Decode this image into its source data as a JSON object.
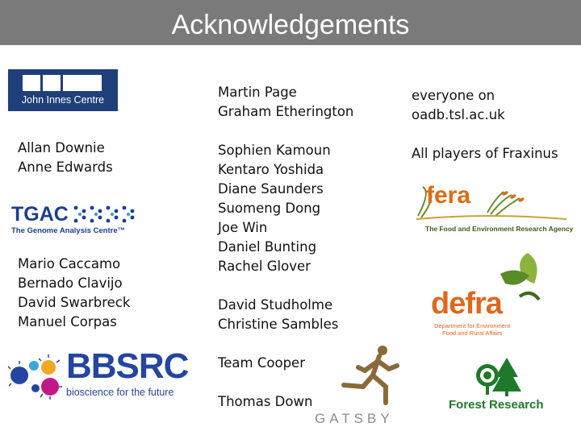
{
  "slide": {
    "title": "Acknowledgements"
  },
  "col1": {
    "group_jic": [
      "Allan Downie",
      "Anne Edwards"
    ],
    "group_tgac": [
      "Mario Caccamo",
      "Bernado Clavijo",
      "David Swarbreck",
      "Manuel Corpas"
    ]
  },
  "col2": {
    "group_a": [
      "Martin Page",
      "Graham Etherington"
    ],
    "group_b": [
      "Sophien Kamoun",
      "Kentaro Yoshida",
      "Diane Saunders",
      "Suomeng Dong",
      "Joe Win",
      "Daniel Bunting",
      "Rachel Glover"
    ],
    "group_c": [
      "David Studholme",
      "Christine Sambles"
    ],
    "group_d": [
      "Team Cooper"
    ],
    "group_e": [
      "Thomas Down"
    ]
  },
  "col3": {
    "lines": [
      "everyone on",
      "oadb.tsl.ac.uk"
    ],
    "fraxinus": "All players of Fraxinus"
  },
  "logos": {
    "jic": {
      "name": "John Innes Centre",
      "color": "#1f3f7a"
    },
    "tgac": {
      "name": "TGAC",
      "sub": "The Genome Analysis Centre™",
      "color": "#1b3e8c",
      "accent": "#37a7dc"
    },
    "bbsrc": {
      "name": "BBSRC",
      "sub": "bioscience for the future",
      "color": "#2445a0",
      "accent": "#f5a623",
      "accent2": "#c1198a"
    },
    "gatsby": {
      "name": "GATSBY",
      "color": "#8a6a3a"
    },
    "fera": {
      "name": "fera",
      "sub": "The Food and Environment Research Agency",
      "color": "#e06a12",
      "accent": "#3d5a1e"
    },
    "defra": {
      "name": "defra",
      "sub_line1": "Department for Environment",
      "sub_line2": "Food and Rural Affairs",
      "color": "#e0671b",
      "accent": "#8cb43c"
    },
    "forest_research": {
      "name": "Forest Research",
      "color": "#1e7a2a"
    }
  }
}
